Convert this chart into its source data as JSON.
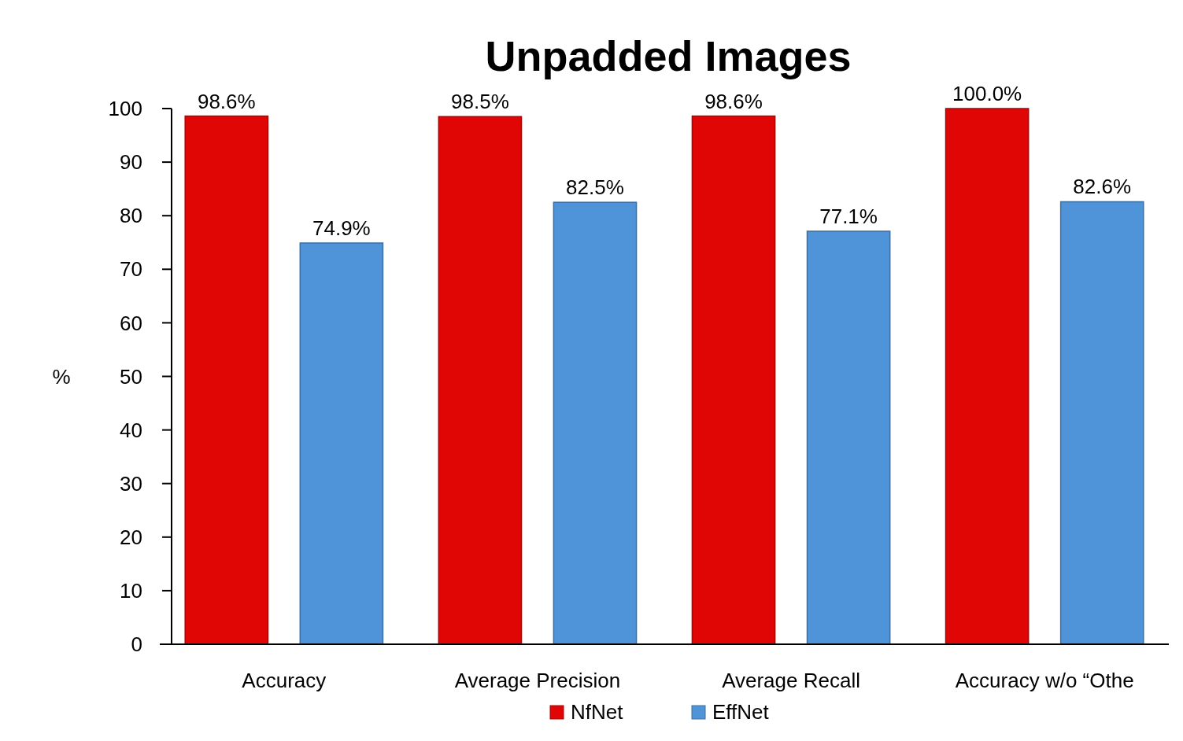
{
  "chart_data": {
    "type": "bar",
    "title": "Unpadded Images",
    "ylabel": "%",
    "categories": [
      "Accuracy",
      "Average Precision",
      "Average Recall",
      "Accuracy w/o “Othe"
    ],
    "series": [
      {
        "name": "NfNet",
        "color": "#e00606",
        "values": [
          98.6,
          98.5,
          98.6,
          100.0
        ],
        "value_labels": [
          "98.6%",
          "98.5%",
          "98.6%",
          "100.0%"
        ]
      },
      {
        "name": "EffNet",
        "color": "#4f94d8",
        "values": [
          74.9,
          82.5,
          77.1,
          82.6
        ],
        "value_labels": [
          "74.9%",
          "82.5%",
          "77.1%",
          "82.6%"
        ]
      }
    ],
    "ylim": [
      0,
      100
    ],
    "yticks": [
      0,
      10,
      20,
      30,
      40,
      50,
      60,
      70,
      80,
      90,
      100
    ],
    "grid": false,
    "legend": "bottom"
  }
}
